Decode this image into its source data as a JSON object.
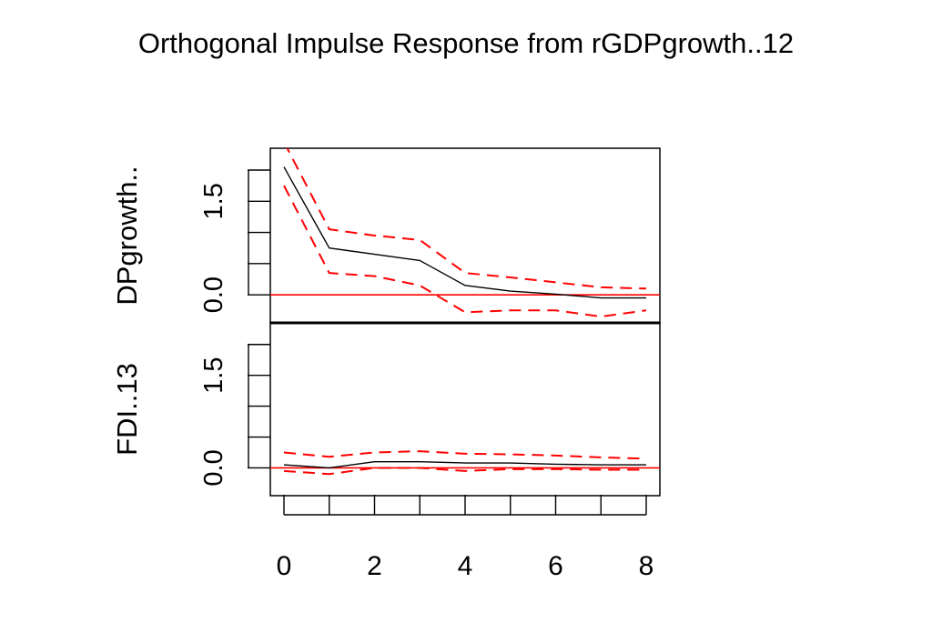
{
  "chart_data": {
    "type": "line",
    "title": "Orthogonal Impulse Response from rGDPgrowth..12",
    "x": [
      0,
      1,
      2,
      3,
      4,
      5,
      6,
      7,
      8
    ],
    "xlim": [
      0,
      8
    ],
    "x_tick_labels": [
      "0",
      "2",
      "4",
      "6",
      "8"
    ],
    "x_tick_values": [
      0,
      2,
      4,
      6,
      8
    ],
    "panels": [
      {
        "ylabel": "DPgrowth..",
        "ylim": [
          -0.45,
          2.35
        ],
        "y_tick_labels": [
          "0.0",
          "1.5"
        ],
        "y_tick_values": [
          0.0,
          1.5
        ],
        "series": [
          {
            "role": "response",
            "color": "#000000",
            "dash": "solid",
            "values": [
              2.05,
              0.75,
              0.65,
              0.55,
              0.15,
              0.06,
              0.01,
              -0.05,
              -0.05
            ]
          },
          {
            "role": "upper-band",
            "color": "#ff0000",
            "dash": "dashed",
            "values": [
              2.45,
              1.05,
              0.95,
              0.88,
              0.35,
              0.28,
              0.2,
              0.12,
              0.1
            ]
          },
          {
            "role": "lower-band",
            "color": "#ff0000",
            "dash": "dashed",
            "values": [
              1.75,
              0.35,
              0.3,
              0.15,
              -0.28,
              -0.25,
              -0.25,
              -0.35,
              -0.25
            ]
          }
        ],
        "reference_line": {
          "value": 0,
          "color": "#ff0000"
        }
      },
      {
        "ylabel": "FDI..13",
        "ylim": [
          -0.45,
          2.35
        ],
        "y_tick_labels": [
          "0.0",
          "1.5"
        ],
        "y_tick_values": [
          0.0,
          1.5
        ],
        "series": [
          {
            "role": "response",
            "color": "#000000",
            "dash": "solid",
            "values": [
              0.05,
              0.0,
              0.1,
              0.1,
              0.08,
              0.08,
              0.06,
              0.05,
              0.05
            ]
          },
          {
            "role": "upper-band",
            "color": "#ff0000",
            "dash": "dashed",
            "values": [
              0.25,
              0.18,
              0.25,
              0.27,
              0.23,
              0.22,
              0.2,
              0.17,
              0.15
            ]
          },
          {
            "role": "lower-band",
            "color": "#ff0000",
            "dash": "dashed",
            "values": [
              -0.05,
              -0.1,
              0.0,
              0.0,
              -0.05,
              -0.02,
              -0.02,
              -0.03,
              -0.03
            ]
          }
        ],
        "reference_line": {
          "value": 0,
          "color": "#ff0000"
        }
      }
    ]
  }
}
